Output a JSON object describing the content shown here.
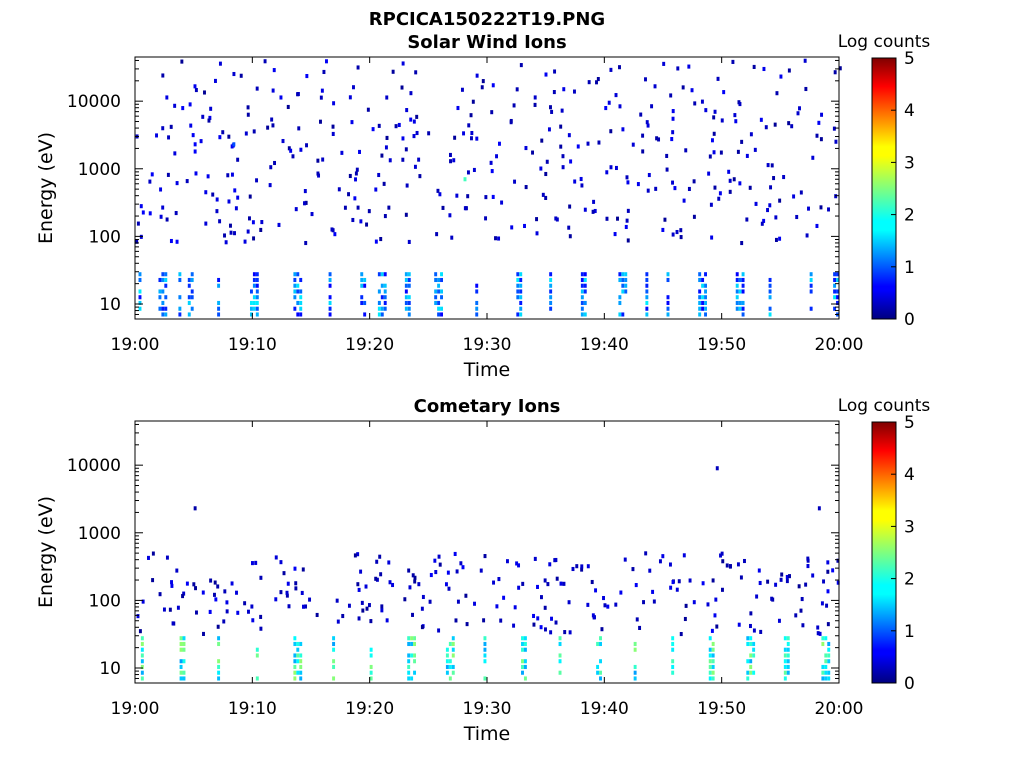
{
  "figure_title": "RPCICA150222T19.PNG",
  "colors": {
    "background": "#ffffff",
    "axis": "#000000",
    "colormap": "jet"
  },
  "chart_data": [
    {
      "type": "heatmap",
      "title": "Solar Wind Ions",
      "xlabel": "Time",
      "ylabel": "Energy (eV)",
      "x_tick_labels": [
        "19:00",
        "19:10",
        "19:20",
        "19:30",
        "19:40",
        "19:50",
        "20:00"
      ],
      "x_range": [
        "19:00",
        "20:00"
      ],
      "y_scale": "log",
      "y_range": [
        6,
        45000
      ],
      "y_tick_values": [
        10,
        100,
        1000,
        10000
      ],
      "y_tick_labels": [
        "10",
        "100",
        "1000",
        "10000"
      ],
      "colorbar": {
        "label": "Log counts",
        "range": [
          0,
          5
        ],
        "tick_labels": [
          "0",
          "1",
          "2",
          "3",
          "4",
          "5"
        ],
        "colormap": "jet"
      },
      "seed": 7,
      "low_energy_level": 1.2,
      "bursts_minutes": [
        0.3,
        2.0,
        3.7,
        4.5,
        7.0,
        9.8,
        13.5,
        16.5,
        19.2,
        20.7,
        23.0,
        25.5,
        29.0,
        32.5,
        35.3,
        38.0,
        41.2,
        43.5,
        45.3,
        48.0,
        51.2,
        54.0,
        57.5,
        59.5
      ],
      "notable_pixels": [
        {
          "minute": 5.0,
          "energy": 2300,
          "level": 0.6
        },
        {
          "minute": 5.0,
          "energy": 1800,
          "level": 0.6
        },
        {
          "minute": 8.3,
          "energy": 2300,
          "level": 1.0
        },
        {
          "minute": 28.0,
          "energy": 700,
          "level": 2.2
        }
      ]
    },
    {
      "type": "heatmap",
      "title": "Cometary Ions",
      "xlabel": "Time",
      "ylabel": "Energy (eV)",
      "x_tick_labels": [
        "19:00",
        "19:10",
        "19:20",
        "19:30",
        "19:40",
        "19:50",
        "20:00"
      ],
      "x_range": [
        "19:00",
        "20:00"
      ],
      "y_scale": "log",
      "y_range": [
        6,
        45000
      ],
      "y_tick_values": [
        10,
        100,
        1000,
        10000
      ],
      "y_tick_labels": [
        "10",
        "100",
        "1000",
        "10000"
      ],
      "colorbar": {
        "label": "Log counts",
        "range": [
          0,
          5
        ],
        "tick_labels": [
          "0",
          "1",
          "2",
          "3",
          "4",
          "5"
        ],
        "colormap": "jet"
      },
      "seed": 13,
      "low_energy_level": 2.0,
      "bursts_minutes": [
        0.5,
        3.8,
        7.0,
        10.3,
        13.5,
        16.8,
        20.0,
        23.2,
        26.5,
        29.7,
        32.9,
        36.1,
        39.3,
        42.5,
        45.7,
        48.9,
        52.1,
        55.3,
        58.5
      ],
      "notable_pixels": [
        {
          "minute": 5.0,
          "energy": 2300,
          "level": 0.2
        },
        {
          "minute": 49.5,
          "energy": 9000,
          "level": 0.3
        },
        {
          "minute": 58.2,
          "energy": 2300,
          "level": 0.3
        }
      ]
    }
  ]
}
